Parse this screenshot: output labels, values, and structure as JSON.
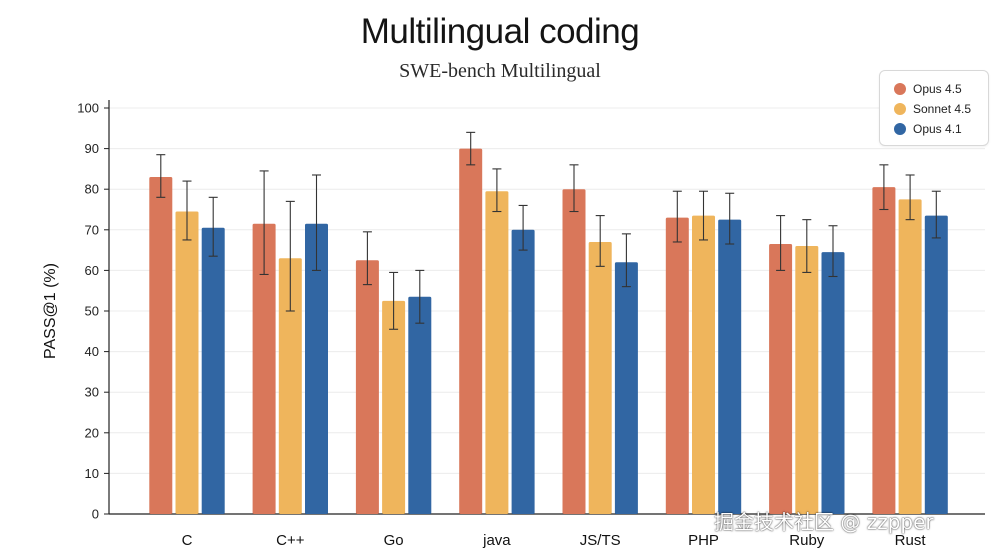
{
  "chart_data": {
    "type": "bar",
    "title": "Multilingual coding",
    "subtitle": "SWE-bench Multilingual",
    "xlabel": "",
    "ylabel": "PASS@1 (%)",
    "ylim": [
      0,
      100
    ],
    "yticks": [
      0,
      10,
      20,
      30,
      40,
      50,
      60,
      70,
      80,
      90,
      100
    ],
    "grid": true,
    "legend_position": "top-right",
    "categories": [
      "C",
      "C++",
      "Go",
      "java",
      "JS/TS",
      "PHP",
      "Ruby",
      "Rust"
    ],
    "series": [
      {
        "name": "Opus 4.5",
        "color": "#d9775a",
        "values": [
          83,
          71.5,
          62.5,
          90,
          80,
          73,
          66.5,
          80.5
        ],
        "error_low": [
          78,
          59,
          56.5,
          86,
          74.5,
          67,
          60,
          75
        ],
        "error_high": [
          88.5,
          84.5,
          69.5,
          94,
          86,
          79.5,
          73.5,
          86
        ]
      },
      {
        "name": "Sonnet 4.5",
        "color": "#efb55c",
        "values": [
          74.5,
          63,
          52.5,
          79.5,
          67,
          73.5,
          66,
          77.5
        ],
        "error_low": [
          67.5,
          50,
          45.5,
          74.5,
          61,
          67.5,
          59.5,
          72.5
        ],
        "error_high": [
          82,
          77,
          59.5,
          85,
          73.5,
          79.5,
          72.5,
          83.5
        ]
      },
      {
        "name": "Opus 4.1",
        "color": "#3166a3",
        "values": [
          70.5,
          71.5,
          53.5,
          70,
          62,
          72.5,
          64.5,
          73.5
        ],
        "error_low": [
          63.5,
          60,
          47,
          65,
          56,
          66.5,
          58.5,
          68
        ],
        "error_high": [
          78,
          83.5,
          60,
          76,
          69,
          79,
          71,
          79.5
        ]
      }
    ]
  },
  "watermark": "掘金技术社区 @ zzpper"
}
